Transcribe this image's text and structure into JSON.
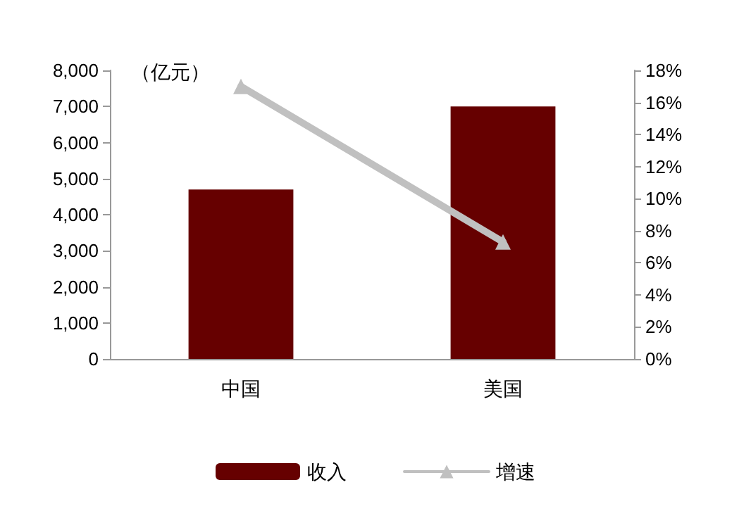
{
  "chart_data": {
    "type": "bar",
    "categories": [
      "中国",
      "美国"
    ],
    "series": [
      {
        "name": "收入",
        "color": "#660000",
        "values": [
          4700,
          7000
        ]
      },
      {
        "name": "增速",
        "type": "line",
        "axis": "y2",
        "color": "#c0c0c0",
        "values": [
          17,
          7.3
        ]
      }
    ],
    "ylim": [
      0,
      8000
    ],
    "yticks": [
      {
        "value": 0,
        "label": "0"
      },
      {
        "value": 1000,
        "label": "1,000"
      },
      {
        "value": 2000,
        "label": "2,000"
      },
      {
        "value": 3000,
        "label": "3,000"
      },
      {
        "value": 4000,
        "label": "4,000"
      },
      {
        "value": 5000,
        "label": "5,000"
      },
      {
        "value": 6000,
        "label": "6,000"
      },
      {
        "value": 7000,
        "label": "7,000"
      },
      {
        "value": 8000,
        "label": "8,000"
      }
    ],
    "y2lim": [
      0,
      18
    ],
    "y2ticks": [
      {
        "value": 0,
        "label": "0%"
      },
      {
        "value": 2,
        "label": "2%"
      },
      {
        "value": 4,
        "label": "4%"
      },
      {
        "value": 6,
        "label": "6%"
      },
      {
        "value": 8,
        "label": "8%"
      },
      {
        "value": 10,
        "label": "10%"
      },
      {
        "value": 12,
        "label": "12%"
      },
      {
        "value": 14,
        "label": "14%"
      },
      {
        "value": 16,
        "label": "16%"
      },
      {
        "value": 18,
        "label": "18%"
      }
    ],
    "annotations": [
      "（亿元）"
    ],
    "legend": "bottom",
    "grid": false,
    "marker": "triangle"
  }
}
